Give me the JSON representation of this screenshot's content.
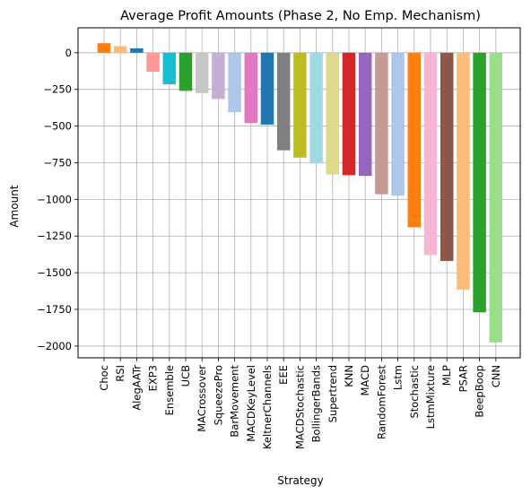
{
  "chart_data": {
    "type": "bar",
    "title": "Average Profit Amounts (Phase 2, No Emp. Mechanism)",
    "xlabel": "Strategy",
    "ylabel": "Amount",
    "ylim": [
      -2080,
      170
    ],
    "yticks": [
      0,
      -250,
      -500,
      -750,
      -1000,
      -1250,
      -1500,
      -1750,
      -2000
    ],
    "grid": true,
    "categories": [
      "Choc",
      "RSI",
      "AlegAATr",
      "EXP3",
      "Ensemble",
      "UCB",
      "MACrossover",
      "SqueezePro",
      "BarMovement",
      "MACDKeyLevel",
      "KeltnerChannels",
      "EEE",
      "MACDStochastic",
      "BollingerBands",
      "Supertrend",
      "KNN",
      "MACD",
      "RandomForest",
      "Lstm",
      "Stochastic",
      "LstmMixture",
      "MLP",
      "PSAR",
      "BeepBoop",
      "CNN"
    ],
    "values": [
      65,
      45,
      30,
      -130,
      -215,
      -260,
      -275,
      -315,
      -405,
      -480,
      -490,
      -665,
      -715,
      -755,
      -830,
      -835,
      -840,
      -965,
      -975,
      -1190,
      -1380,
      -1420,
      -1615,
      -1770,
      -1975
    ],
    "colors": [
      "#ff7f0e",
      "#ffbb78",
      "#1f77b4",
      "#ff9896",
      "#17becf",
      "#2ca02c",
      "#c7c7c7",
      "#c5b0d5",
      "#aec7e8",
      "#e377c2",
      "#1f77b4",
      "#7f7f7f",
      "#bcbd22",
      "#9edae5",
      "#dbdb8d",
      "#d62728",
      "#9467bd",
      "#c49c94",
      "#aec7e8",
      "#ff7f0e",
      "#f7b6d2",
      "#8c564b",
      "#ffbb78",
      "#2ca02c",
      "#98df8a"
    ]
  }
}
